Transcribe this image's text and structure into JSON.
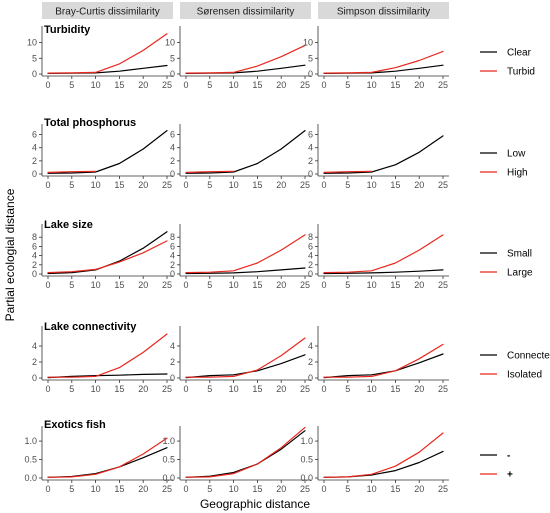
{
  "xlabel": "Geographic distance",
  "ylabel": "Partial ecologial distance",
  "columns": [
    "Bray-Curtis dissimilarity",
    "Sørensen dissimilarity",
    "Simpson dissimilarity"
  ],
  "colors": {
    "line_1": "#000000",
    "line_2": "#e8271e",
    "strip": "#d9d9d9",
    "axis": "#333333"
  },
  "chart_data": [
    {
      "type": "line",
      "title": "Turbidity",
      "legend": [
        "Clear",
        "Turbid"
      ],
      "ylim": [
        0,
        14
      ],
      "yticks": [
        0,
        5,
        10
      ],
      "xlim": [
        0,
        25
      ],
      "xticks": [
        0,
        5,
        10,
        15,
        20,
        25
      ],
      "panels": [
        {
          "column": "Bray-Curtis dissimilarity",
          "series": [
            {
              "name": "Clear",
              "x": [
                0,
                5,
                10,
                15,
                20,
                25
              ],
              "y": [
                0.2,
                0.25,
                0.35,
                0.9,
                1.8,
                2.7
              ]
            },
            {
              "name": "Turbid",
              "x": [
                0,
                5,
                10,
                15,
                20,
                25
              ],
              "y": [
                0.3,
                0.35,
                0.5,
                3.2,
                7.5,
                12.8
              ]
            }
          ]
        },
        {
          "column": "Sørensen dissimilarity",
          "series": [
            {
              "name": "Clear",
              "x": [
                0,
                5,
                10,
                15,
                20,
                25
              ],
              "y": [
                0.2,
                0.25,
                0.35,
                0.9,
                1.8,
                2.8
              ]
            },
            {
              "name": "Turbid",
              "x": [
                0,
                5,
                10,
                15,
                20,
                25
              ],
              "y": [
                0.3,
                0.35,
                0.5,
                2.5,
                5.5,
                9.1
              ]
            }
          ]
        },
        {
          "column": "Simpson dissimilarity",
          "series": [
            {
              "name": "Clear",
              "x": [
                0,
                5,
                10,
                15,
                20,
                25
              ],
              "y": [
                0.2,
                0.25,
                0.35,
                0.9,
                1.8,
                2.8
              ]
            },
            {
              "name": "Turbid",
              "x": [
                0,
                5,
                10,
                15,
                20,
                25
              ],
              "y": [
                0.3,
                0.35,
                0.5,
                2.0,
                4.3,
                7.2
              ]
            }
          ]
        }
      ]
    },
    {
      "type": "line",
      "title": "Total phosphorus",
      "legend": [
        "Low",
        "High"
      ],
      "ylim": [
        0,
        7
      ],
      "yticks": [
        0,
        2,
        4,
        6
      ],
      "xlim": [
        0,
        25
      ],
      "xticks": [
        0,
        5,
        10,
        15,
        20,
        25
      ],
      "panels": [
        {
          "column": "Bray-Curtis dissimilarity",
          "series": [
            {
              "name": "Low",
              "x": [
                0,
                5,
                10,
                15,
                20,
                25
              ],
              "y": [
                0.1,
                0.15,
                0.3,
                1.6,
                3.8,
                6.6
              ]
            },
            {
              "name": "High",
              "x": [
                0,
                5,
                10
              ],
              "y": [
                0.25,
                0.35,
                0.4
              ]
            }
          ]
        },
        {
          "column": "Sørensen dissimilarity",
          "series": [
            {
              "name": "Low",
              "x": [
                0,
                5,
                10,
                15,
                20,
                25
              ],
              "y": [
                0.1,
                0.15,
                0.3,
                1.6,
                3.8,
                6.6
              ]
            },
            {
              "name": "High",
              "x": [
                0,
                5,
                10
              ],
              "y": [
                0.25,
                0.35,
                0.4
              ]
            }
          ]
        },
        {
          "column": "Simpson dissimilarity",
          "series": [
            {
              "name": "Low",
              "x": [
                0,
                5,
                10,
                15,
                20,
                25
              ],
              "y": [
                0.1,
                0.15,
                0.3,
                1.4,
                3.3,
                5.8
              ]
            },
            {
              "name": "High",
              "x": [
                0,
                5,
                10
              ],
              "y": [
                0.25,
                0.35,
                0.4
              ]
            }
          ]
        }
      ]
    },
    {
      "type": "line",
      "title": "Lake size",
      "legend": [
        "Small",
        "Large"
      ],
      "ylim": [
        0,
        10
      ],
      "yticks": [
        0,
        2,
        4,
        6,
        8
      ],
      "xlim": [
        0,
        25
      ],
      "xticks": [
        0,
        5,
        10,
        15,
        20,
        25
      ],
      "panels": [
        {
          "column": "Bray-Curtis dissimilarity",
          "series": [
            {
              "name": "Small",
              "x": [
                0,
                5,
                10,
                15,
                20,
                25
              ],
              "y": [
                0.1,
                0.3,
                0.9,
                2.8,
                5.6,
                9.2
              ]
            },
            {
              "name": "Large",
              "x": [
                0,
                5,
                10,
                15,
                20,
                25
              ],
              "y": [
                0.3,
                0.5,
                1.0,
                2.6,
                4.6,
                7.2
              ]
            }
          ]
        },
        {
          "column": "Sørensen dissimilarity",
          "series": [
            {
              "name": "Small",
              "x": [
                0,
                5,
                10,
                15,
                20,
                25
              ],
              "y": [
                0.1,
                0.15,
                0.25,
                0.5,
                0.9,
                1.3
              ]
            },
            {
              "name": "Large",
              "x": [
                0,
                5,
                10,
                15,
                20,
                25
              ],
              "y": [
                0.3,
                0.4,
                0.7,
                2.4,
                5.2,
                8.5
              ]
            }
          ]
        },
        {
          "column": "Simpson dissimilarity",
          "series": [
            {
              "name": "Small",
              "x": [
                0,
                5,
                10,
                15,
                20,
                25
              ],
              "y": [
                0.1,
                0.15,
                0.25,
                0.4,
                0.6,
                0.9
              ]
            },
            {
              "name": "Large",
              "x": [
                0,
                5,
                10,
                15,
                20,
                25
              ],
              "y": [
                0.3,
                0.4,
                0.7,
                2.4,
                5.2,
                8.5
              ]
            }
          ]
        }
      ]
    },
    {
      "type": "line",
      "title": "Lake connectivity",
      "legend": [
        "Connected",
        "Isolated"
      ],
      "ylim": [
        0,
        6
      ],
      "yticks": [
        0,
        2,
        4
      ],
      "xlim": [
        0,
        25
      ],
      "xticks": [
        0,
        5,
        10,
        15,
        20,
        25
      ],
      "panels": [
        {
          "column": "Bray-Curtis dissimilarity",
          "series": [
            {
              "name": "Connected",
              "x": [
                0,
                5,
                10,
                15,
                20,
                25
              ],
              "y": [
                0.05,
                0.2,
                0.3,
                0.35,
                0.45,
                0.5
              ]
            },
            {
              "name": "Isolated",
              "x": [
                0,
                5,
                10,
                15,
                20,
                25
              ],
              "y": [
                0.1,
                0.1,
                0.2,
                1.3,
                3.2,
                5.5
              ]
            }
          ]
        },
        {
          "column": "Sørensen dissimilarity",
          "series": [
            {
              "name": "Connected",
              "x": [
                0,
                5,
                10,
                15,
                20,
                25
              ],
              "y": [
                0.05,
                0.3,
                0.4,
                0.9,
                1.8,
                2.9
              ]
            },
            {
              "name": "Isolated",
              "x": [
                0,
                5,
                10,
                15,
                20,
                25
              ],
              "y": [
                0.1,
                0.1,
                0.2,
                1.0,
                2.8,
                5.0
              ]
            }
          ]
        },
        {
          "column": "Simpson dissimilarity",
          "series": [
            {
              "name": "Connected",
              "x": [
                0,
                5,
                10,
                15,
                20,
                25
              ],
              "y": [
                0.05,
                0.3,
                0.4,
                0.9,
                1.9,
                3.0
              ]
            },
            {
              "name": "Isolated",
              "x": [
                0,
                5,
                10,
                15,
                20,
                25
              ],
              "y": [
                0.1,
                0.1,
                0.2,
                0.9,
                2.4,
                4.2
              ]
            }
          ]
        }
      ]
    },
    {
      "type": "line",
      "title": "Exotics fish",
      "legend": [
        "-",
        "+"
      ],
      "ylim": [
        0,
        1.3
      ],
      "yticks": [
        0.0,
        0.5,
        1.0
      ],
      "xlim": [
        0,
        25
      ],
      "xticks": [
        0,
        5,
        10,
        15,
        20,
        25
      ],
      "panels": [
        {
          "column": "Bray-Curtis dissimilarity",
          "series": [
            {
              "name": "-",
              "x": [
                0,
                5,
                10,
                15,
                20,
                25
              ],
              "y": [
                0.02,
                0.04,
                0.12,
                0.3,
                0.55,
                0.82
              ]
            },
            {
              "name": "+",
              "x": [
                0,
                5,
                10,
                15,
                20,
                25
              ],
              "y": [
                0.02,
                0.03,
                0.1,
                0.3,
                0.65,
                1.08
              ]
            }
          ]
        },
        {
          "column": "Sørensen dissimilarity",
          "series": [
            {
              "name": "-",
              "x": [
                0,
                5,
                10,
                15,
                20,
                25
              ],
              "y": [
                0.02,
                0.05,
                0.15,
                0.38,
                0.78,
                1.28
              ]
            },
            {
              "name": "+",
              "x": [
                0,
                5,
                10,
                15,
                20,
                25
              ],
              "y": [
                0.02,
                0.03,
                0.12,
                0.38,
                0.82,
                1.37
              ]
            }
          ]
        },
        {
          "column": "Simpson dissimilarity",
          "series": [
            {
              "name": "-",
              "x": [
                0,
                5,
                10,
                15,
                20,
                25
              ],
              "y": [
                0.02,
                0.03,
                0.08,
                0.2,
                0.42,
                0.72
              ]
            },
            {
              "name": "+",
              "x": [
                0,
                5,
                10,
                15,
                20,
                25
              ],
              "y": [
                0.02,
                0.03,
                0.1,
                0.32,
                0.7,
                1.22
              ]
            }
          ]
        }
      ]
    }
  ]
}
